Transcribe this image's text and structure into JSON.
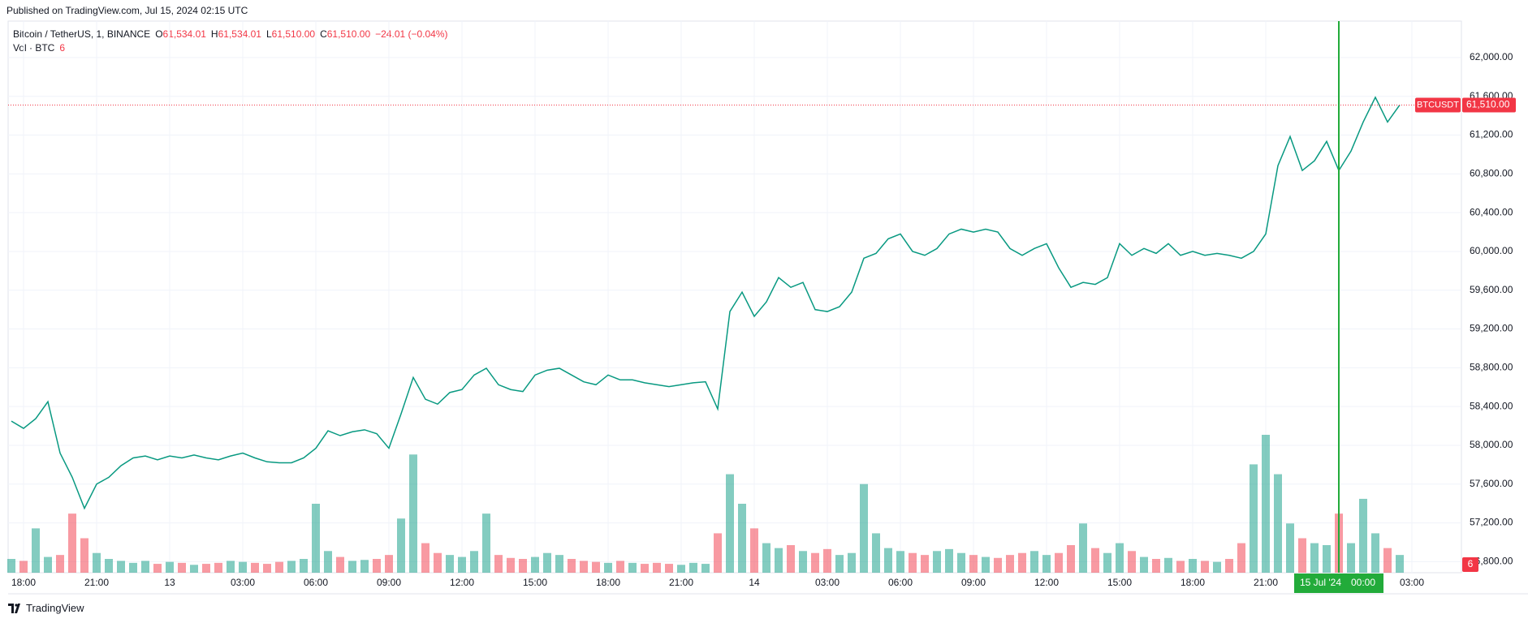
{
  "header": {
    "published": "Published on TradingView.com, Jul 15, 2024 02:15 UTC"
  },
  "legend": {
    "symbol": "Bitcoin / TetherUS, 1, BINANCE",
    "open_label": "O",
    "open": "61,534.01",
    "high_label": "H",
    "high": "61,534.01",
    "low_label": "L",
    "low": "61,510.00",
    "close_label": "C",
    "close": "61,510.00",
    "change": "−24.01 (−0.04%)",
    "volume_label": "Vol · BTC",
    "volume": "6"
  },
  "footer": {
    "brand": "TradingView"
  },
  "chart_data": {
    "type": "line",
    "series": [
      {
        "name": "BTCUSDT",
        "color": "#089981",
        "values": [
          58250,
          58175,
          58275,
          58450,
          57920,
          57670,
          57350,
          57600,
          57670,
          57790,
          57870,
          57890,
          57850,
          57890,
          57870,
          57900,
          57870,
          57850,
          57890,
          57920,
          57870,
          57830,
          57820,
          57820,
          57870,
          57970,
          58150,
          58100,
          58140,
          58160,
          58120,
          57970,
          58325,
          58700,
          58475,
          58425,
          58545,
          58575,
          58725,
          58795,
          58625,
          58575,
          58555,
          58725,
          58775,
          58795,
          58725,
          58655,
          58625,
          58725,
          58675,
          58675,
          58645,
          58625,
          58605,
          58625,
          58645,
          58655,
          58375,
          59380,
          59580,
          59330,
          59480,
          59730,
          59630,
          59680,
          59400,
          59380,
          59430,
          59580,
          59930,
          59980,
          60130,
          60180,
          60000,
          59960,
          60030,
          60180,
          60230,
          60200,
          60230,
          60200,
          60030,
          59960,
          60030,
          60080,
          59830,
          59630,
          59680,
          59660,
          59730,
          60080,
          59960,
          60030,
          59980,
          60080,
          59960,
          60000,
          59960,
          59980,
          59960,
          59930,
          60000,
          60180,
          60885,
          61185,
          60835,
          60935,
          61135,
          60835,
          61035,
          61335,
          61590,
          61335,
          61510
        ]
      },
      {
        "name": "Vol · BTC",
        "axis": "volume",
        "up_color": "rgba(8,153,129,0.5)",
        "down_color": "rgba(242,54,69,0.5)",
        "values": [
          14,
          12,
          45,
          16,
          18,
          60,
          35,
          20,
          14,
          12,
          10,
          12,
          9,
          11,
          10,
          8,
          9,
          10,
          12,
          11,
          10,
          9,
          11,
          12,
          14,
          70,
          22,
          16,
          12,
          13,
          14,
          18,
          55,
          120,
          30,
          20,
          18,
          16,
          22,
          60,
          18,
          15,
          14,
          16,
          20,
          18,
          14,
          12,
          11,
          10,
          12,
          10,
          9,
          10,
          9,
          8,
          10,
          9,
          40,
          100,
          70,
          45,
          30,
          25,
          28,
          22,
          20,
          24,
          18,
          20,
          90,
          40,
          25,
          22,
          20,
          18,
          22,
          24,
          20,
          18,
          16,
          15,
          18,
          20,
          22,
          18,
          20,
          28,
          50,
          25,
          20,
          30,
          22,
          16,
          14,
          15,
          12,
          14,
          12,
          11,
          14,
          30,
          110,
          140,
          100,
          50,
          35,
          30,
          28,
          60,
          30,
          75,
          40,
          25,
          18
        ]
      }
    ],
    "ylim": [
      56686,
      62376
    ],
    "volume_ylim": [
      0,
      560
    ],
    "yticks": [
      {
        "value": 56800,
        "label": "56,800.00"
      },
      {
        "value": 57200,
        "label": "57,200.00"
      },
      {
        "value": 57600,
        "label": "57,600.00"
      },
      {
        "value": 58000,
        "label": "58,000.00"
      },
      {
        "value": 58400,
        "label": "58,400.00"
      },
      {
        "value": 58800,
        "label": "58,800.00"
      },
      {
        "value": 59200,
        "label": "59,200.00"
      },
      {
        "value": 59600,
        "label": "59,600.00"
      },
      {
        "value": 60000,
        "label": "60,000.00"
      },
      {
        "value": 60400,
        "label": "60,400.00"
      },
      {
        "value": 60800,
        "label": "60,800.00"
      },
      {
        "value": 61200,
        "label": "61,200.00"
      },
      {
        "value": 61600,
        "label": "61,600.00"
      },
      {
        "value": 62000,
        "label": "62,000.00"
      }
    ],
    "xticks": [
      "18:00",
      "21:00",
      "13",
      "03:00",
      "06:00",
      "09:00",
      "12:00",
      "15:00",
      "18:00",
      "21:00",
      "14",
      "03:00",
      "06:00",
      "09:00",
      "12:00",
      "15:00",
      "18:00",
      "21:00",
      "03:00"
    ],
    "crosshair": {
      "date": "15 Jul '24",
      "time": "00:00",
      "color": "#22ab3a"
    },
    "last_price": {
      "value": 61510,
      "label": "61,510.00",
      "symbol": "BTCUSDT",
      "color": "#f23645"
    },
    "grid": true
  }
}
